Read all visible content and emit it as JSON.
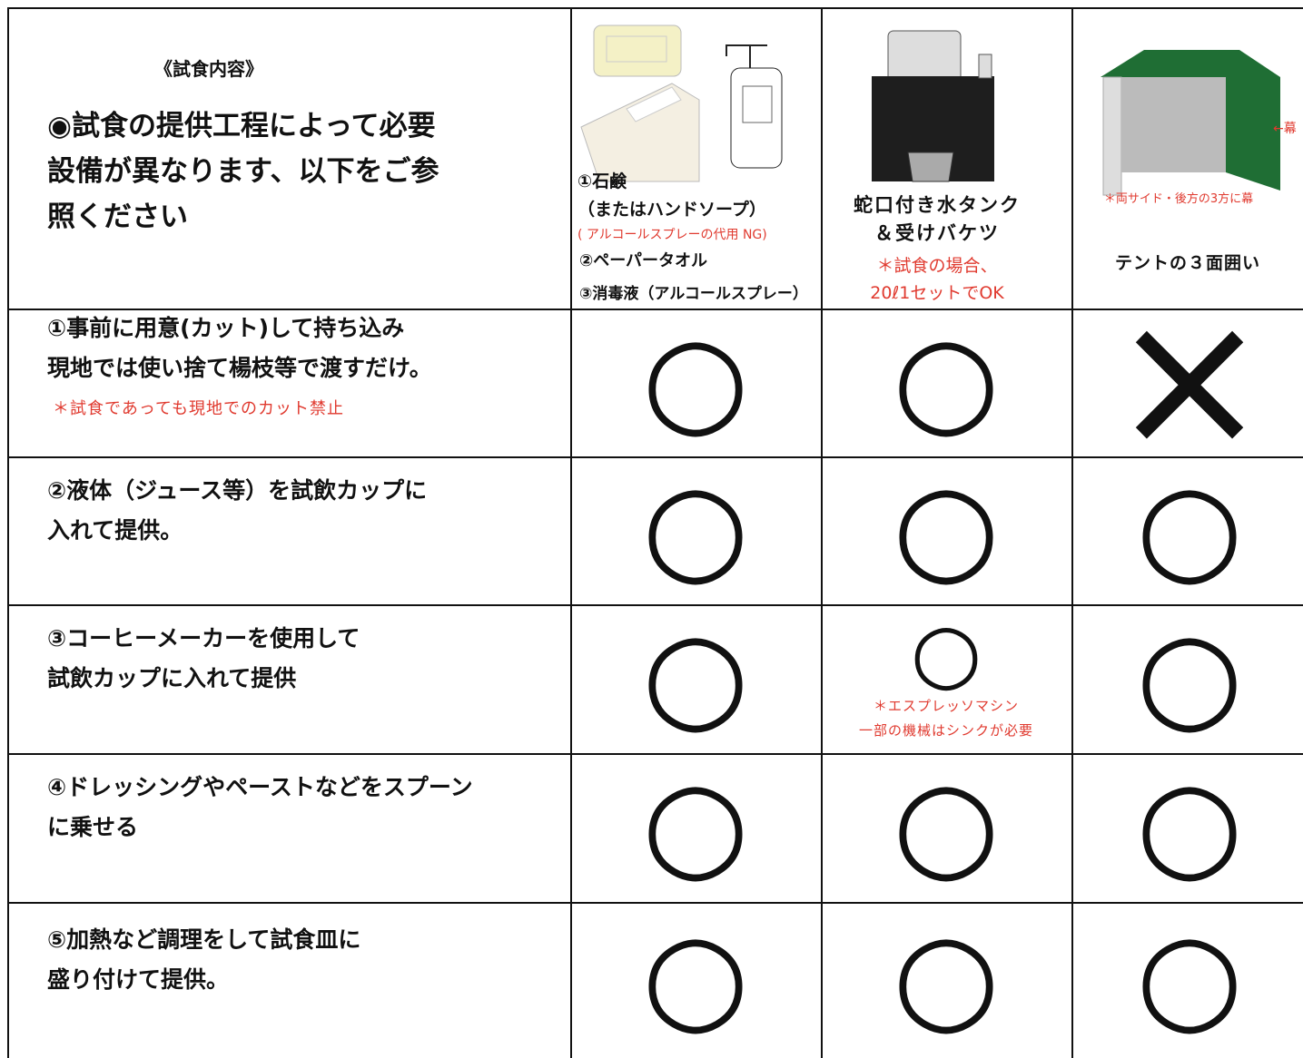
{
  "header": {
    "col0": {
      "caption": "《試食内容》",
      "lines": [
        "◉試食の提供工程によって必要",
        "設備が異なります、以下をご参",
        "照ください"
      ]
    },
    "col1": {
      "lines": [
        "①石鹸",
        "（またはハンドソープ）"
      ],
      "warning": "( アルコールスプレーの代用 NG)",
      "more": [
        "②ペーパータオル",
        "③消毒液（アルコールスプレー）"
      ]
    },
    "col2": {
      "lines": [
        "蛇口付き水タンク",
        "＆受けバケツ"
      ],
      "notes": [
        "＊試食の場合、",
        "20ℓ1セットでOK"
      ]
    },
    "col3": {
      "arrow": "←幕",
      "note": "＊両サイド・後方の3方に幕",
      "label": "テントの３面囲い"
    }
  },
  "rows": [
    {
      "lines": [
        "①事前に用意(カット)して持ち込み",
        "現地では使い捨て楊枝等で渡すだけ。"
      ],
      "note": "＊試食であっても現地でのカット禁止",
      "marks": [
        "○",
        "○",
        "×"
      ]
    },
    {
      "lines": [
        "②液体（ジュース等）を試飲カップに",
        "入れて提供。"
      ],
      "marks": [
        "○",
        "○",
        "○"
      ]
    },
    {
      "lines": [
        "③コーヒーメーカーを使用して",
        "試飲カップに入れて提供"
      ],
      "marks": [
        "○",
        "○",
        "○"
      ],
      "mark_note": [
        "＊エスプレッソマシン",
        "一部の機械はシンクが必要"
      ]
    },
    {
      "lines": [
        "④ドレッシングやペーストなどをスプーン",
        "に乗せる"
      ],
      "marks": [
        "○",
        "○",
        "○"
      ]
    },
    {
      "lines": [
        "⑤加熱など調理をして試食皿に",
        "盛り付けて提供。"
      ],
      "marks": [
        "○",
        "○",
        "○"
      ]
    }
  ]
}
